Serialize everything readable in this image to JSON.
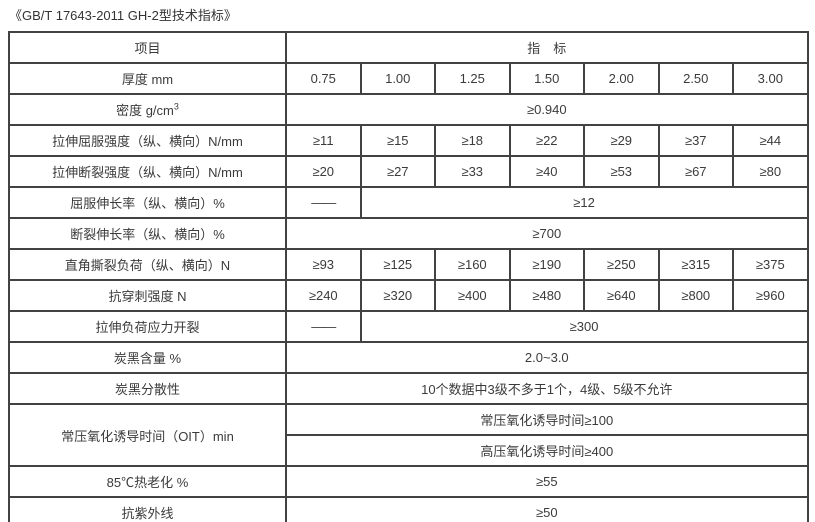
{
  "page_title": "《GB/T 17643-2011 GH-2型技术指标》",
  "table": {
    "header": {
      "item": "项目",
      "indicator": "指　标"
    },
    "rows": [
      {
        "label": "厚度 mm",
        "values": [
          "0.75",
          "1.00",
          "1.25",
          "1.50",
          "2.00",
          "2.50",
          "3.00"
        ]
      },
      {
        "label_main": "密度 g/cm",
        "label_sup": "3",
        "span": "≥0.940"
      },
      {
        "label": "拉伸屈服强度（纵、横向）N/mm",
        "values": [
          "≥11",
          "≥15",
          "≥18",
          "≥22",
          "≥29",
          "≥37",
          "≥44"
        ]
      },
      {
        "label": "拉伸断裂强度（纵、横向）N/mm",
        "values": [
          "≥20",
          "≥27",
          "≥33",
          "≥40",
          "≥53",
          "≥67",
          "≥80"
        ]
      },
      {
        "label": "屈服伸长率（纵、横向）%",
        "dash": "——",
        "span": "≥12"
      },
      {
        "label": "断裂伸长率（纵、横向）%",
        "span": "≥700"
      },
      {
        "label": "直角撕裂负荷（纵、横向）N",
        "values": [
          "≥93",
          "≥125",
          "≥160",
          "≥190",
          "≥250",
          "≥315",
          "≥375"
        ]
      },
      {
        "label": "抗穿刺强度 N",
        "values": [
          "≥240",
          "≥320",
          "≥400",
          "≥480",
          "≥640",
          "≥800",
          "≥960"
        ]
      },
      {
        "label": "拉伸负荷应力开裂",
        "dash": "——",
        "span": "≥300"
      },
      {
        "label": "炭黑含量 %",
        "span": "2.0~3.0"
      },
      {
        "label": "炭黑分散性",
        "span": "10个数据中3级不多于1个，4级、5级不允许"
      },
      {
        "label": "常压氧化诱导时间（OIT）min",
        "sub_rows": [
          "常压氧化诱导时间≥100",
          "高压氧化诱导时间≥400"
        ]
      },
      {
        "label": "85℃热老化 %",
        "span": "≥55"
      },
      {
        "label": "抗紫外线",
        "span": "≥50"
      }
    ]
  }
}
